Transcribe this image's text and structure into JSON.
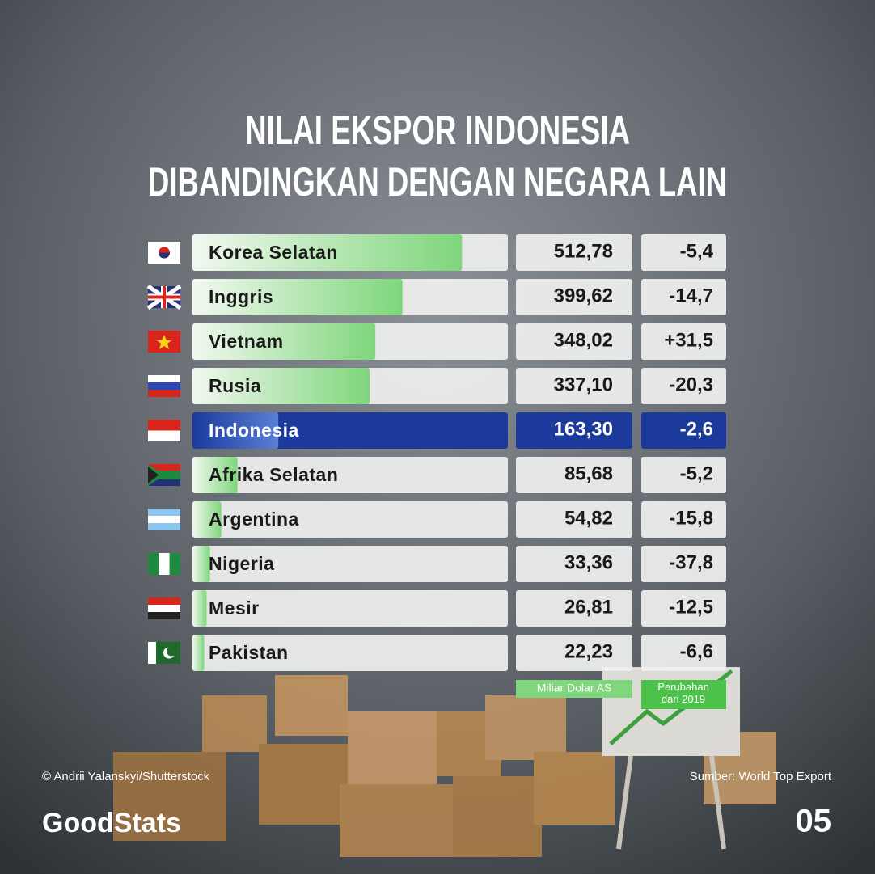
{
  "chart_data": {
    "type": "bar",
    "title": [
      "NILAI EKSPOR INDONESIA",
      "DIBANDINGKAN DENGAN NEGARA LAIN"
    ],
    "categories": [
      "Korea Selatan",
      "Inggris",
      "Vietnam",
      "Rusia",
      "Indonesia",
      "Afrika Selatan",
      "Argentina",
      "Nigeria",
      "Mesir",
      "Pakistan"
    ],
    "series": [
      {
        "name": "Miliar Dolar AS",
        "color": "#7fd67c",
        "values": [
          512.78,
          399.62,
          348.02,
          337.1,
          163.3,
          85.68,
          54.82,
          33.36,
          26.81,
          22.23
        ],
        "value_labels": [
          "512,78",
          "399,62",
          "348,02",
          "337,10",
          "163,30",
          "85,68",
          "54,82",
          "33,36",
          "26,81",
          "22,23"
        ]
      },
      {
        "name": "Perubahan dari 2019",
        "color": "#4cc24a",
        "values": [
          -5.4,
          -14.7,
          31.5,
          -20.3,
          -2.6,
          -5.2,
          -15.8,
          -37.8,
          -12.5,
          -6.6
        ],
        "value_labels": [
          "-5,4",
          "-14,7",
          "+31,5",
          "-20,3",
          "-2,6",
          "-5,2",
          "-15,8",
          "-37,8",
          "-12,5",
          "-6,6"
        ]
      }
    ],
    "xlim": [
      0,
      600
    ],
    "highlight": "Indonesia",
    "highlight_color": "#1b3a9c",
    "credit": "© Andrii Yalanskyi/Shutterstock",
    "source": "Sumber: World Top Export",
    "brand": "GoodStats",
    "page": "05"
  }
}
